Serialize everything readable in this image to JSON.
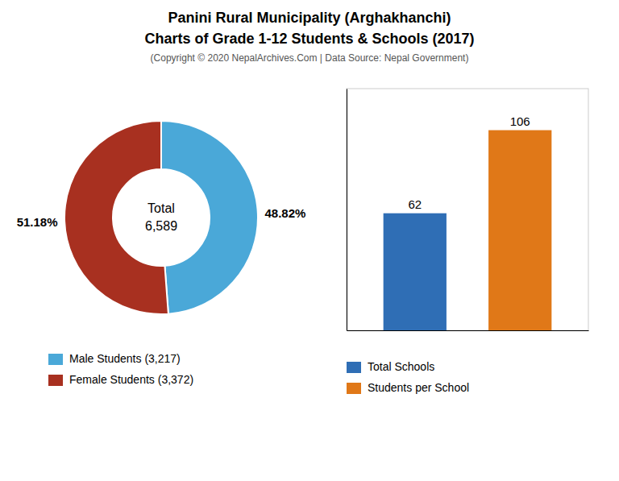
{
  "title": "Panini Rural Municipality (Arghakhanchi)",
  "subtitle": "Charts of Grade 1-12 Students & Schools (2017)",
  "annotations": [
    "(Copyright © 2020 NepalArchives.Com | Data Source: Nepal Government)"
  ],
  "chart_data": [
    {
      "type": "pie",
      "categories": [
        "Male Students (3,217)",
        "Female Students (3,372)"
      ],
      "values": [
        48.82,
        51.18
      ],
      "value_labels": [
        "48.82%",
        "51.18%"
      ],
      "colors": [
        "#4aa8d8",
        "#a83020"
      ],
      "annotations": [
        "Total",
        "6,589"
      ],
      "data_labels": true,
      "legend": "bottom"
    },
    {
      "type": "bar",
      "categories": [
        "Total Schools",
        "Students per School"
      ],
      "values": [
        62,
        106
      ],
      "colors": [
        "#2f6eb5",
        "#e07818"
      ],
      "ylim": [
        0,
        128
      ],
      "tick_labels": false,
      "data_labels": true,
      "legend": "bottom"
    }
  ]
}
